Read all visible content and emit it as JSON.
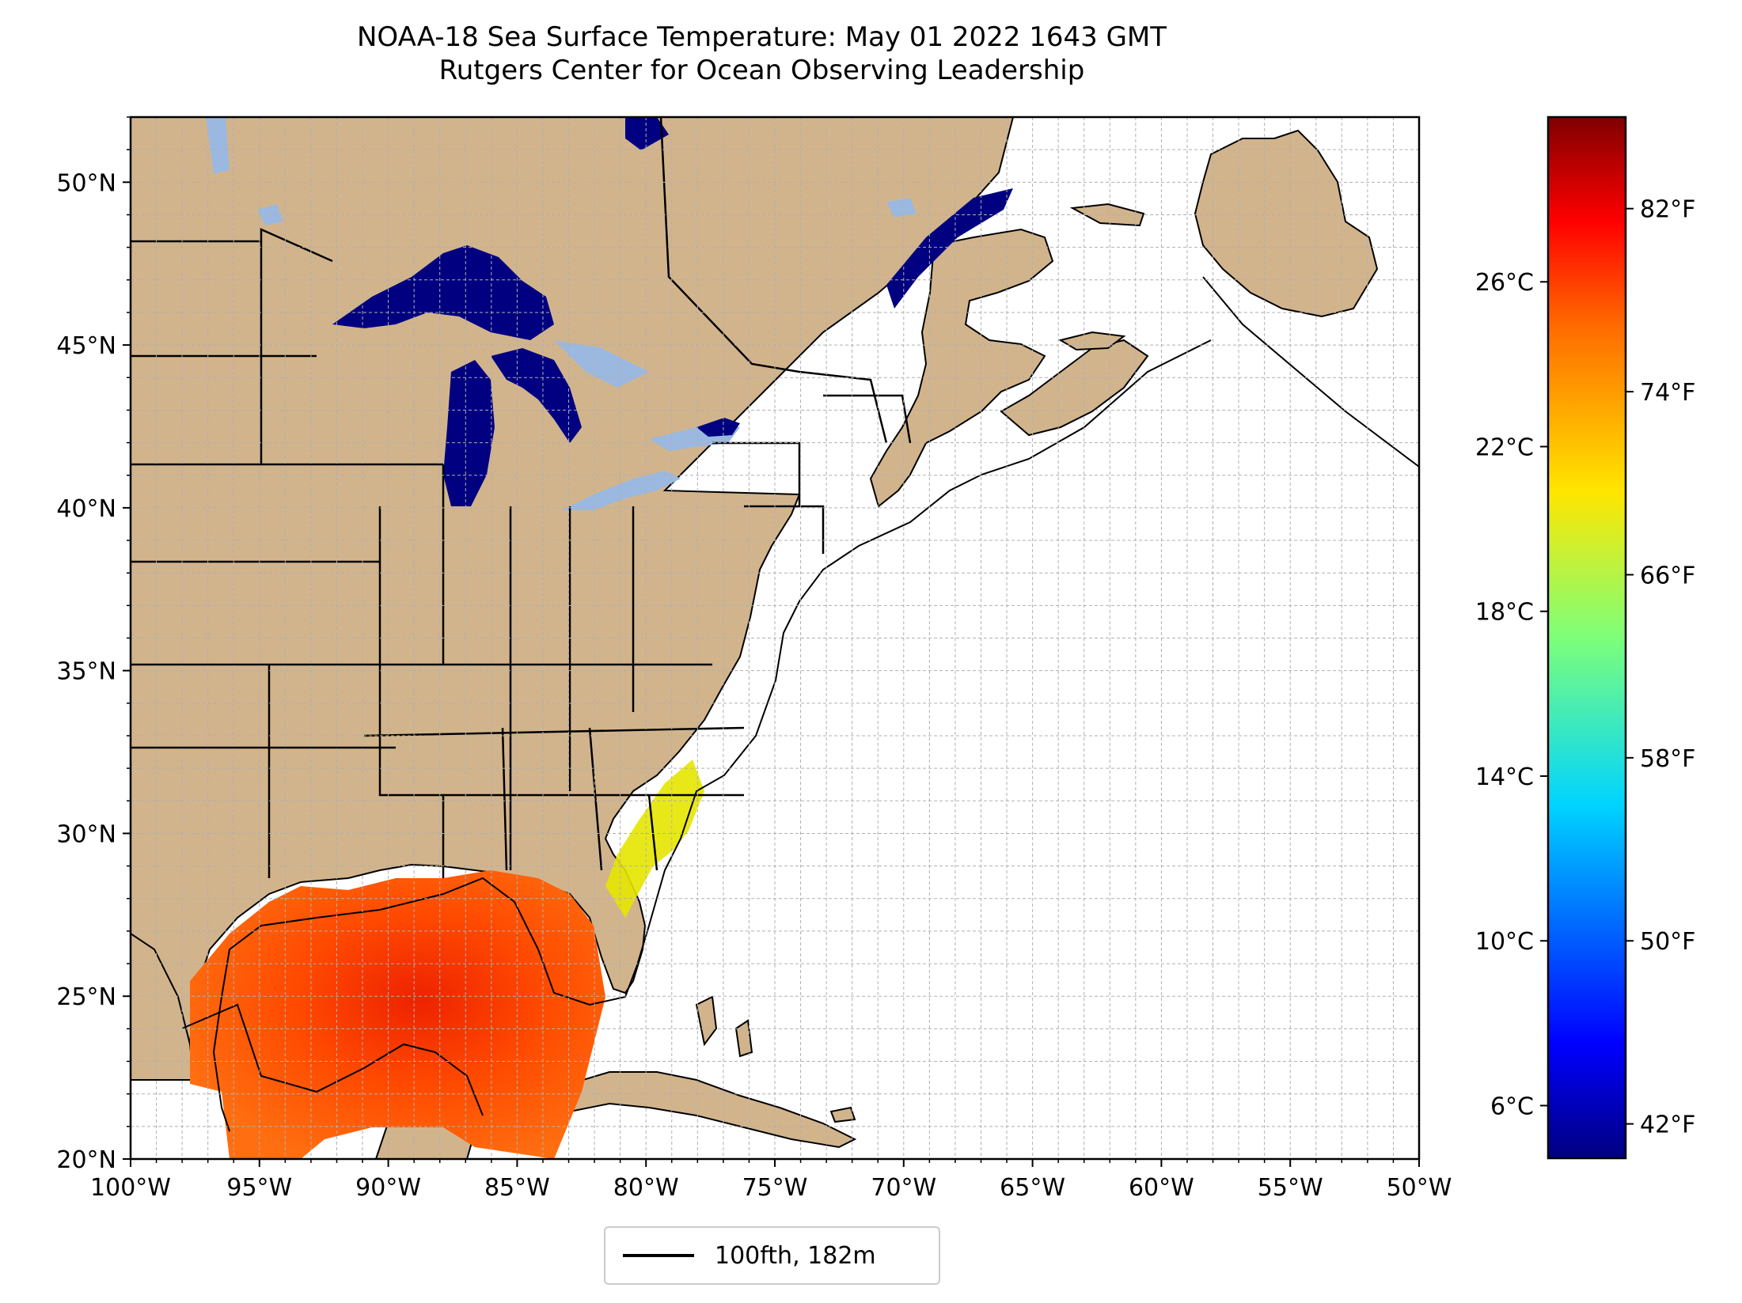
{
  "title": {
    "line1": "NOAA-18 Sea Surface Temperature: May 01 2022 1643 GMT",
    "line2": "Rutgers Center for Ocean Observing Leadership"
  },
  "map": {
    "lon_range": [
      -100,
      -50
    ],
    "lat_range": [
      20,
      52
    ],
    "lon_ticks": [
      "100°W",
      "95°W",
      "90°W",
      "85°W",
      "80°W",
      "75°W",
      "70°W",
      "65°W",
      "60°W",
      "55°W",
      "50°W"
    ],
    "lat_ticks": [
      "20°N",
      "25°N",
      "30°N",
      "35°N",
      "40°N",
      "45°N",
      "50°N"
    ],
    "gridlines": true,
    "colors": {
      "land": "#d2b48c",
      "lakes": "#9bb8e0",
      "ocean": "#ffffff",
      "border": "#000000"
    }
  },
  "colorbar": {
    "colormap": "jet",
    "celsius_ticks": [
      "6°C",
      "10°C",
      "14°C",
      "18°C",
      "22°C",
      "26°C"
    ],
    "fahrenheit_ticks": [
      "42°F",
      "50°F",
      "58°F",
      "66°F",
      "74°F",
      "82°F"
    ],
    "range_f": [
      40.5,
      86
    ]
  },
  "legend": {
    "label": "100fth, 182m",
    "line_color": "#000000"
  }
}
